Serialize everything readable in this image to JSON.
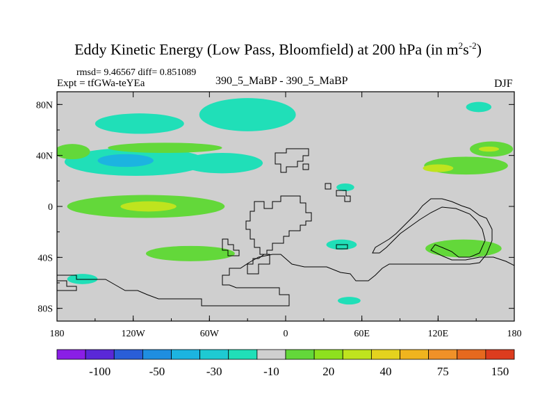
{
  "header": {
    "title_main": "Eddy Kinetic Energy (Low Pass, Bloomfield) at 200 hPa (in m",
    "title_sup1": "2",
    "title_mid": "s",
    "title_sup2": "-2",
    "title_close": ")",
    "stats": "rmsd= 9.46567 diff= 0.851089",
    "expt": "Expt = tfGWa-teYEa",
    "center_label": "390_5_MaBP - 390_5_MaBP",
    "season": "DJF"
  },
  "chart_data": {
    "type": "heatmap",
    "title": "Eddy Kinetic Energy (Low Pass, Bloomfield) at 200 hPa (in m^2 s^-2)",
    "subtitle": "390_5_MaBP - 390_5_MaBP",
    "xlabel": "",
    "ylabel": "",
    "xlim": [
      -180,
      180
    ],
    "ylim": [
      -90,
      90
    ],
    "x_ticks": [
      {
        "value": -180,
        "label": "180"
      },
      {
        "value": -120,
        "label": "120W"
      },
      {
        "value": -60,
        "label": "60W"
      },
      {
        "value": 0,
        "label": "0"
      },
      {
        "value": 60,
        "label": "60E"
      },
      {
        "value": 120,
        "label": "120E"
      },
      {
        "value": 180,
        "label": "180"
      }
    ],
    "y_ticks": [
      {
        "value": 80,
        "label": "80N"
      },
      {
        "value": 40,
        "label": "40N"
      },
      {
        "value": 0,
        "label": "0"
      },
      {
        "value": -40,
        "label": "40S"
      },
      {
        "value": -80,
        "label": "80S"
      }
    ],
    "colorbar": {
      "colors": [
        "#8a1ee6",
        "#5a28d8",
        "#2a5ed8",
        "#1f8ee0",
        "#1cb4e0",
        "#1ecad2",
        "#20dfb8",
        "#cfcfcf",
        "#63d83a",
        "#8ee11e",
        "#bfe41e",
        "#e4d21e",
        "#f0b41e",
        "#f09128",
        "#e6691e",
        "#dc3c1e"
      ],
      "labels": [
        {
          "index": 2,
          "text": "-100"
        },
        {
          "index": 4,
          "text": "-50"
        },
        {
          "index": 6,
          "text": "-30"
        },
        {
          "index": 8,
          "text": "-10"
        },
        {
          "index": 10,
          "text": "20"
        },
        {
          "index": 12,
          "text": "40"
        },
        {
          "index": 14,
          "text": "75"
        },
        {
          "index": 16,
          "text": "150"
        }
      ]
    },
    "background_color": "#cfcfcf",
    "outline_color": "#000000",
    "regions": [
      {
        "name": "n-pacific-west-cyan",
        "level": "-10 to -30",
        "color": "#20dfb8",
        "lon": -118,
        "lat": 35,
        "rlon": 56,
        "rlat": 11
      },
      {
        "name": "n-pacific-cyan-core",
        "level": "-30 to -50",
        "color": "#1cb4e0",
        "lon": -126,
        "lat": 36,
        "rlon": 22,
        "rlat": 5
      },
      {
        "name": "n-pacific-east-cyan",
        "level": "-10 to -30",
        "color": "#20dfb8",
        "lon": -50,
        "lat": 34,
        "rlon": 32,
        "rlat": 8
      },
      {
        "name": "n-pacific-green-west",
        "level": "10 to 20",
        "color": "#63d83a",
        "lon": -168,
        "lat": 43,
        "rlon": 14,
        "rlat": 6
      },
      {
        "name": "n-pacific-green-band",
        "level": "10 to 20",
        "color": "#63d83a",
        "lon": -95,
        "lat": 46,
        "rlon": 45,
        "rlat": 4
      },
      {
        "name": "arctic-cyan-blob",
        "level": "-10 to -30",
        "color": "#20dfb8",
        "lon": -30,
        "lat": 72,
        "rlon": 38,
        "rlat": 13
      },
      {
        "name": "n-pacific-cyan-north",
        "level": "-10 to -30",
        "color": "#20dfb8",
        "lon": -115,
        "lat": 65,
        "rlon": 35,
        "rlat": 8
      },
      {
        "name": "equatorial-pacific-green",
        "level": "10 to 20",
        "color": "#63d83a",
        "lon": -110,
        "lat": 0,
        "rlon": 62,
        "rlat": 9
      },
      {
        "name": "equatorial-pacific-yellow",
        "level": "20 to 40",
        "color": "#bfe41e",
        "lon": -108,
        "lat": 0,
        "rlon": 22,
        "rlat": 4
      },
      {
        "name": "n-atlantic-green",
        "level": "10 to 20",
        "color": "#63d83a",
        "lon": 142,
        "lat": 32,
        "rlon": 33,
        "rlat": 7
      },
      {
        "name": "nw-pacific-yellow",
        "level": "20 to 40",
        "color": "#bfe41e",
        "lon": 120,
        "lat": 30,
        "rlon": 12,
        "rlat": 3
      },
      {
        "name": "n-atlantic-east-green",
        "level": "10 to 20",
        "color": "#63d83a",
        "lon": 162,
        "lat": 45,
        "rlon": 17,
        "rlat": 6
      },
      {
        "name": "n-atlantic-east-yellow",
        "level": "20 to 40",
        "color": "#bfe41e",
        "lon": 160,
        "lat": 45,
        "rlon": 8,
        "rlat": 2
      },
      {
        "name": "s-hemisphere-green",
        "level": "10 to 20",
        "color": "#63d83a",
        "lon": 140,
        "lat": -33,
        "rlon": 30,
        "rlat": 7
      },
      {
        "name": "s-pacific-green",
        "level": "10 to 20",
        "color": "#63d83a",
        "lon": -75,
        "lat": -37,
        "rlon": 35,
        "rlat": 6
      },
      {
        "name": "arctic-cyan-east",
        "level": "-10 to -30",
        "color": "#20dfb8",
        "lon": 152,
        "lat": 78,
        "rlon": 10,
        "rlat": 4
      },
      {
        "name": "africa-cyan",
        "level": "-10 to -30",
        "color": "#20dfb8",
        "lon": 44,
        "lat": -30,
        "rlon": 12,
        "rlat": 4
      },
      {
        "name": "arabia-cyan",
        "level": "-10 to -30",
        "color": "#20dfb8",
        "lon": 47,
        "lat": 15,
        "rlon": 7,
        "rlat": 3
      },
      {
        "name": "s-ocean-cyan",
        "level": "-10 to -30",
        "color": "#20dfb8",
        "lon": 50,
        "lat": -74,
        "rlon": 9,
        "rlat": 3
      },
      {
        "name": "s-pacific-cyan",
        "level": "-10 to -30",
        "color": "#20dfb8",
        "lon": -160,
        "lat": -57,
        "rlon": 12,
        "rlat": 4
      }
    ]
  }
}
